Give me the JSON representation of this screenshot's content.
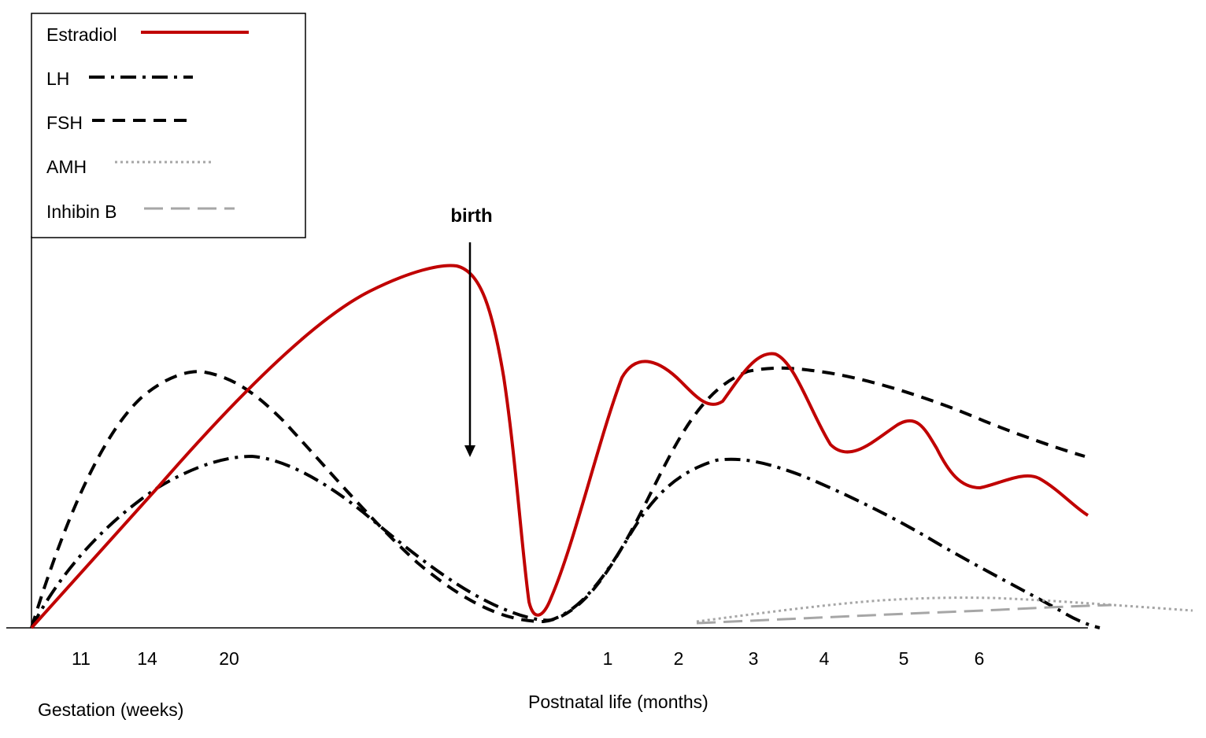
{
  "chart_data": {
    "type": "line",
    "title": "",
    "xlabel_gestation": "Gestation (weeks)",
    "xlabel_postnatal": "Postnatal life (months)",
    "ylabel": "",
    "gestation_ticks": [
      "11",
      "14",
      "20"
    ],
    "postnatal_ticks": [
      "1",
      "2",
      "3",
      "4",
      "5",
      "6"
    ],
    "legend_position": "top-left",
    "annotations": [
      {
        "text": "birth"
      }
    ],
    "series": [
      {
        "name": "Estradiol",
        "color": "#c00000",
        "style": "solid"
      },
      {
        "name": "LH",
        "color": "#000000",
        "style": "dash-dot"
      },
      {
        "name": "FSH",
        "color": "#000000",
        "style": "dashed"
      },
      {
        "name": "AMH",
        "color": "#a6a6a6",
        "style": "dotted"
      },
      {
        "name": "Inhibin B",
        "color": "#a6a6a6",
        "style": "long-dash"
      }
    ]
  }
}
